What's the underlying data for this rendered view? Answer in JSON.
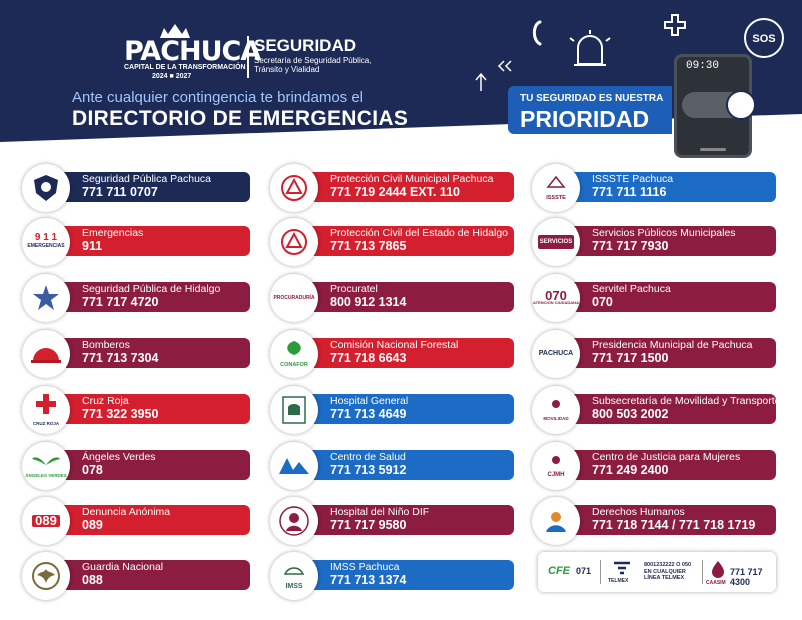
{
  "header": {
    "logo_main": "PACHUCA",
    "logo_sub": "CAPITAL DE LA TRANSFORMACIÓN",
    "logo_years": "2024 ■ 2027",
    "sec_title": "SEGURIDAD",
    "sec_sub": "Secretaría de Seguridad Pública, Tránsito y Vialidad",
    "intro": "Ante cualquier contingencia te brindamos el",
    "headline": "DIRECTORIO DE EMERGENCIAS",
    "prio_small": "TU SEGURIDAD ES NUESTRA",
    "prio_big": "PRIORIDAD",
    "phone_time": "09:30",
    "sos": "SOS"
  },
  "columns": [
    [
      {
        "name": "Seguridad Pública Pachuca",
        "phone": "771 711 0707",
        "color": "navy",
        "logo": "shield-badge"
      },
      {
        "name": "Emergencias",
        "phone": "911",
        "color": "red",
        "logo": "911-emergencias"
      },
      {
        "name": "Seguridad Pública de Hidalgo",
        "phone": "771 717 4720",
        "color": "wine",
        "logo": "star-badge"
      },
      {
        "name": "Bomberos",
        "phone": "771 713 7304",
        "color": "wine",
        "logo": "firefighter-helmet"
      },
      {
        "name": "Cruz Roja",
        "phone": "771 322 3950",
        "color": "red",
        "logo": "red-cross"
      },
      {
        "name": "Ángeles Verdes",
        "phone": "078",
        "color": "wine",
        "logo": "angeles-verdes"
      },
      {
        "name": "Denuncia Anónima",
        "phone": "089",
        "color": "red",
        "logo": "089"
      },
      {
        "name": "Guardia Nacional",
        "phone": "088",
        "color": "wine",
        "logo": "guardia-nacional"
      }
    ],
    [
      {
        "name": "Protección Civil Municipal Pachuca",
        "phone": "771 719 2444  EXT. 110",
        "color": "red",
        "logo": "proteccion-civil"
      },
      {
        "name": "Protección Civil del Estado de Hidalgo",
        "phone": "771 713 7865",
        "color": "red",
        "logo": "proteccion-civil"
      },
      {
        "name": "Procuratel",
        "phone": "800 912 1314",
        "color": "wine",
        "logo": "procuraduria"
      },
      {
        "name": "Comisión Nacional Forestal",
        "phone": "771 718 6643",
        "color": "red",
        "logo": "conafor"
      },
      {
        "name": "Hospital General",
        "phone": "771 713 4649",
        "color": "blue",
        "logo": "imss-hidalgo"
      },
      {
        "name": "Centro de Salud",
        "phone": "771 713 5912",
        "color": "blue",
        "logo": "salud"
      },
      {
        "name": "Hospital del Niño DIF",
        "phone": "771 717 9580",
        "color": "wine",
        "logo": "hospital-nino"
      },
      {
        "name": "IMSS Pachuca",
        "phone": "771 713 1374",
        "color": "blue",
        "logo": "imss"
      }
    ],
    [
      {
        "name": "ISSSTE Pachuca",
        "phone": "771 711 1116",
        "color": "blue",
        "logo": "issste"
      },
      {
        "name": "Servicios Públicos Municipales",
        "phone": "771 717 7930",
        "color": "wine",
        "logo": "servicios"
      },
      {
        "name": "Servitel Pachuca",
        "phone": "070",
        "color": "wine",
        "logo": "070"
      },
      {
        "name": "Presidencia Municipal de Pachuca",
        "phone": "771 717 1500",
        "color": "wine",
        "logo": "pachuca"
      },
      {
        "name": "Subsecretaría de Movilidad y Transporte",
        "phone": "800 503 2002",
        "color": "wine",
        "logo": "movilidad"
      },
      {
        "name": "Centro de Justicia para Mujeres",
        "phone": "771 249 2400",
        "color": "wine",
        "logo": "cjmh"
      },
      {
        "name": "Derechos Humanos",
        "phone": "771 718 7144 / 771 718 1719",
        "color": "wine",
        "logo": "derechos-humanos"
      }
    ]
  ],
  "logo_texts": {
    "e911_top": "9 1 1",
    "e911_bottom": "EMERGENCIAS",
    "cruz_roja": "CRUZ ROJA",
    "angeles": "ÁNGELES VERDES",
    "d089": "089",
    "procuraduria": "PROCURADURÍA",
    "conafor": "CONAFOR",
    "issste": "ISSSTE",
    "servicios": "SERVICIOS",
    "s070": "070",
    "s070_sub": "ATENCIÓN CIUDADANA",
    "pachuca": "PACHUCA",
    "movilidad": "MOVILIDAD",
    "cjmh": "CJMH",
    "imss": "IMSS"
  },
  "footer": {
    "cfe": "CFE",
    "cfe_num": "071",
    "telmex": "TELMEX",
    "telmex_txt": "8001232222 O 050 EN CUALQUIER LÍNEA TELMEX",
    "caasim": "CAASIM",
    "caasim_num": "771 717 4300"
  },
  "colors": {
    "navy": "#1c2a55",
    "red": "#d31f2e",
    "wine": "#8c1c40",
    "blue": "#1c6bc4"
  }
}
